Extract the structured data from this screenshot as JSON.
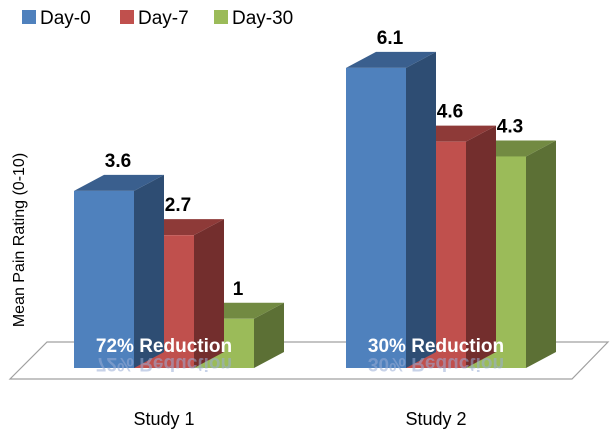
{
  "chart_data": {
    "type": "bar",
    "categories": [
      "Study 1",
      "Study 2"
    ],
    "series": [
      {
        "name": "Day-0",
        "values": [
          3.6,
          6.1
        ]
      },
      {
        "name": "Day-7",
        "values": [
          2.7,
          4.6
        ]
      },
      {
        "name": "Day-30",
        "values": [
          1,
          4.3
        ]
      }
    ],
    "value_labels": [
      [
        "3.6",
        "2.7",
        "1"
      ],
      [
        "6.1",
        "4.6",
        "4.3"
      ]
    ],
    "annotations": [
      "72% Reduction",
      "30% Reduction"
    ],
    "ylabel": "Mean Pain Rating  (0-10)",
    "xlabel": "",
    "ylim": [
      0,
      7
    ],
    "grid": false,
    "legend_position": "top-left",
    "style": "3d-bar",
    "colors": {
      "Day-0": {
        "front": "#4f81bd",
        "top": "#3a5f8e",
        "side": "#2e4d73"
      },
      "Day-7": {
        "front": "#c0504d",
        "top": "#8e3a38",
        "side": "#732e2d"
      },
      "Day-30": {
        "front": "#9bbb59",
        "top": "#728a42",
        "side": "#5c7035"
      }
    },
    "floor_color": "#ffffff",
    "floor_stroke": "#a0a0a0"
  }
}
